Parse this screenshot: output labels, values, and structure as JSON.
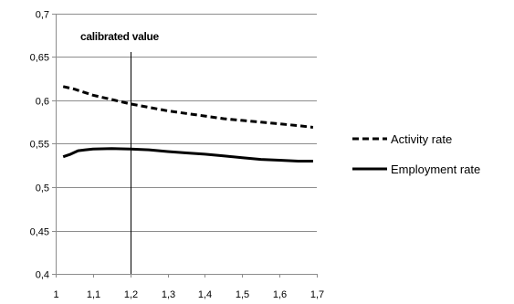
{
  "chart_data": {
    "type": "line",
    "title": "",
    "xlabel": "",
    "ylabel": "",
    "xlim": [
      1.0,
      1.7
    ],
    "ylim": [
      0.4,
      0.7
    ],
    "x_ticks": [
      1,
      1.1,
      1.2,
      1.3,
      1.4,
      1.5,
      1.6,
      1.7
    ],
    "x_tick_labels": [
      "1",
      "1,1",
      "1,2",
      "1,3",
      "1,4",
      "1,5",
      "1,6",
      "1,7"
    ],
    "y_ticks": [
      0.4,
      0.45,
      0.5,
      0.55,
      0.6,
      0.65,
      0.7
    ],
    "y_tick_labels": [
      "0,4",
      "0,45",
      "0,5",
      "0,55",
      "0,6",
      "0,65",
      "0,7"
    ],
    "grid": "horizontal",
    "legend_position": "right",
    "annotation": {
      "label": "calibrated value",
      "x": 1.2
    },
    "series": [
      {
        "name": "Activity rate",
        "style": "dashed",
        "color": "#000000",
        "x": [
          1.02,
          1.05,
          1.1,
          1.15,
          1.2,
          1.25,
          1.3,
          1.35,
          1.4,
          1.45,
          1.5,
          1.55,
          1.6,
          1.65,
          1.69
        ],
        "y": [
          0.616,
          0.613,
          0.606,
          0.601,
          0.596,
          0.592,
          0.588,
          0.585,
          0.582,
          0.579,
          0.577,
          0.575,
          0.573,
          0.571,
          0.569
        ]
      },
      {
        "name": "Employment rate",
        "style": "solid",
        "color": "#000000",
        "x": [
          1.02,
          1.04,
          1.06,
          1.08,
          1.1,
          1.15,
          1.2,
          1.25,
          1.3,
          1.35,
          1.4,
          1.45,
          1.5,
          1.55,
          1.6,
          1.65,
          1.69
        ],
        "y": [
          0.535,
          0.538,
          0.542,
          0.543,
          0.544,
          0.5445,
          0.544,
          0.543,
          0.541,
          0.5395,
          0.538,
          0.536,
          0.534,
          0.532,
          0.531,
          0.53,
          0.53
        ]
      }
    ]
  }
}
